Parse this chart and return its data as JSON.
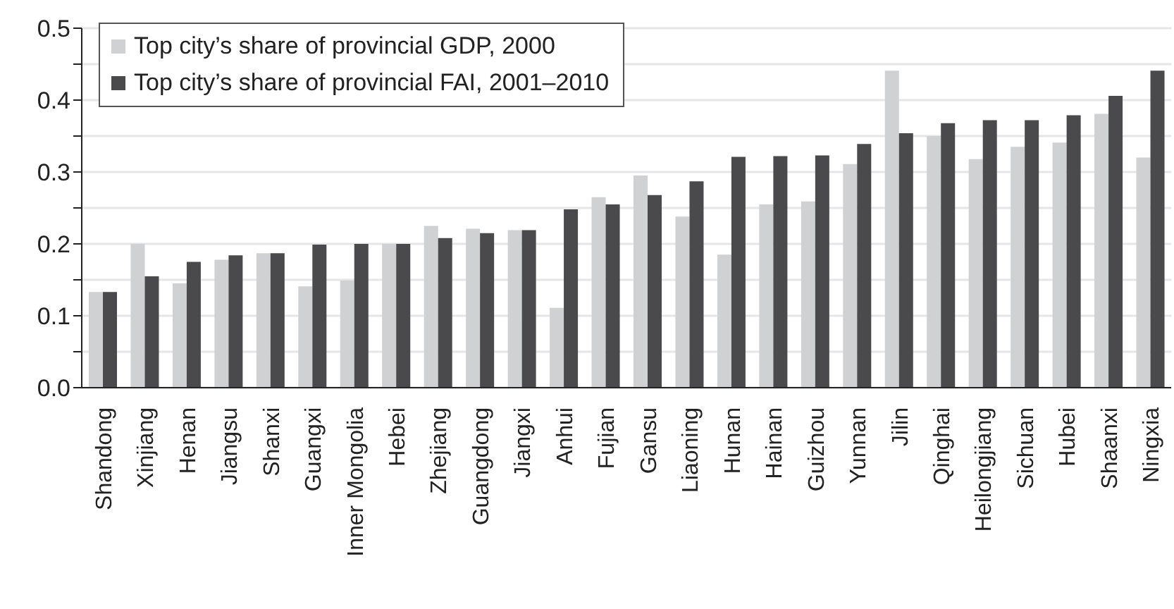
{
  "chart_data": {
    "type": "bar",
    "categories": [
      "Shandong",
      "Xinjiang",
      "Henan",
      "Jiangsu",
      "Shanxi",
      "Guangxi",
      "Inner Mongolia",
      "Hebei",
      "Zhejiang",
      "Guangdong",
      "Jiangxi",
      "Anhui",
      "Fujian",
      "Gansu",
      "Liaoning",
      "Hunan",
      "Hainan",
      "Guizhou",
      "Yunnan",
      "Jilin",
      "Qinghai",
      "Heilongjiang",
      "Sichuan",
      "Hubei",
      "Shaanxi",
      "Ningxia"
    ],
    "series": [
      {
        "name": "Top city’s share of provincial GDP, 2000",
        "color": "#d0d1d3",
        "values": [
          0.133,
          0.2,
          0.145,
          0.178,
          0.187,
          0.141,
          0.149,
          0.2,
          0.225,
          0.221,
          0.219,
          0.111,
          0.265,
          0.295,
          0.238,
          0.185,
          0.255,
          0.259,
          0.311,
          0.441,
          0.35,
          0.318,
          0.335,
          0.341,
          0.381,
          0.32
        ]
      },
      {
        "name": "Top city’s share of provincial FAI, 2001–2010",
        "color": "#4a4a4c",
        "values": [
          0.133,
          0.155,
          0.175,
          0.184,
          0.187,
          0.199,
          0.2,
          0.2,
          0.208,
          0.215,
          0.219,
          0.248,
          0.255,
          0.268,
          0.287,
          0.321,
          0.322,
          0.323,
          0.339,
          0.354,
          0.368,
          0.372,
          0.372,
          0.379,
          0.406,
          0.441
        ]
      }
    ],
    "ylim": [
      0,
      0.5
    ],
    "yticks": [
      {
        "value": 0,
        "label": "0.0"
      },
      {
        "value": 0.05,
        "label": null
      },
      0.1,
      {
        "value": 0.15,
        "label": null
      },
      0.2,
      {
        "value": 0.25,
        "label": null
      },
      0.3,
      {
        "value": 0.35,
        "label": null
      },
      0.4,
      {
        "value": 0.45,
        "label": null
      },
      0.5
    ],
    "grid": "y",
    "legend": "top left"
  }
}
